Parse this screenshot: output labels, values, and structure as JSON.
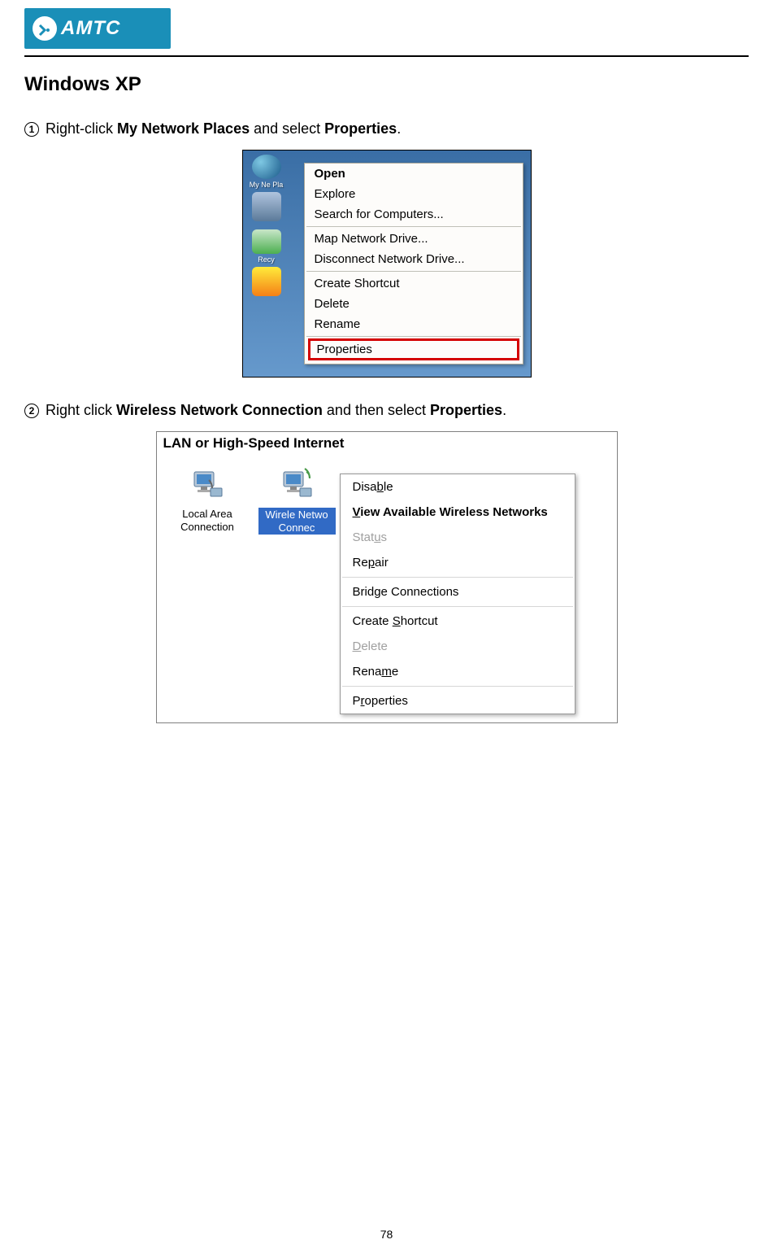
{
  "header": {
    "logo_text": "AMTC",
    "logo_bg_color": "#1a8fb8",
    "logo_text_color": "#ffffff"
  },
  "page": {
    "section_title": "Windows XP",
    "page_number": "78"
  },
  "step1": {
    "number": "1",
    "text_prefix": " Right-click ",
    "bold1": "My Network Places",
    "text_mid": " and select ",
    "bold2": "Properties",
    "text_suffix": "."
  },
  "step2": {
    "number": "2",
    "text_prefix": " Right click ",
    "bold1": "Wireless Network Connection",
    "text_mid": " and then select ",
    "bold2": "Properties",
    "text_suffix": "."
  },
  "screenshot1": {
    "desktop_icons": [
      {
        "label": "My Ne\nPla"
      },
      {
        "label": ""
      },
      {
        "label": "Recy"
      },
      {
        "label": ""
      }
    ],
    "menu_items": [
      {
        "label": "Open",
        "bold": true
      },
      {
        "label": "Explore"
      },
      {
        "label": "Search for Computers..."
      },
      {
        "sep": true
      },
      {
        "label": "Map Network Drive..."
      },
      {
        "label": "Disconnect Network Drive..."
      },
      {
        "sep": true
      },
      {
        "label": "Create Shortcut"
      },
      {
        "label": "Delete"
      },
      {
        "label": "Rename"
      },
      {
        "sep": true
      },
      {
        "label": "Properties",
        "highlighted": true
      }
    ]
  },
  "screenshot2": {
    "section_header": "LAN or High-Speed Internet",
    "connections": [
      {
        "label": "Local Area Connection",
        "selected": false
      },
      {
        "label": "Wirele\nNetwo\nConnec",
        "selected": true
      }
    ],
    "menu_items": [
      {
        "label_parts": [
          {
            "text": "Disa"
          },
          {
            "text": "b",
            "u": true
          },
          {
            "text": "le"
          }
        ]
      },
      {
        "label_parts": [
          {
            "text": "V",
            "u": true
          },
          {
            "text": "iew Available Wireless Networks"
          }
        ],
        "bold": true
      },
      {
        "label_parts": [
          {
            "text": "Stat"
          },
          {
            "text": "u",
            "u": true
          },
          {
            "text": "s"
          }
        ],
        "disabled": true
      },
      {
        "label_parts": [
          {
            "text": "Re"
          },
          {
            "text": "p",
            "u": true
          },
          {
            "text": "air"
          }
        ]
      },
      {
        "sep": true
      },
      {
        "label_parts": [
          {
            "text": "Brid"
          },
          {
            "text": "g",
            "u": true
          },
          {
            "text": "e Connections"
          }
        ]
      },
      {
        "sep": true
      },
      {
        "label_parts": [
          {
            "text": "Create "
          },
          {
            "text": "S",
            "u": true
          },
          {
            "text": "hortcut"
          }
        ]
      },
      {
        "label_parts": [
          {
            "text": "D",
            "u": true
          },
          {
            "text": "elete"
          }
        ],
        "disabled": true
      },
      {
        "label_parts": [
          {
            "text": "Rena"
          },
          {
            "text": "m",
            "u": true
          },
          {
            "text": "e"
          }
        ]
      },
      {
        "sep": true
      },
      {
        "label_parts": [
          {
            "text": "P"
          },
          {
            "text": "r",
            "u": true
          },
          {
            "text": "operties"
          }
        ]
      }
    ]
  },
  "colors": {
    "xp_desktop_bg": "#5b8fc7",
    "menu_bg": "#fdfcfa",
    "menu_border": "#aca899",
    "highlight_red": "#d40000",
    "selection_blue": "#316ac5"
  }
}
